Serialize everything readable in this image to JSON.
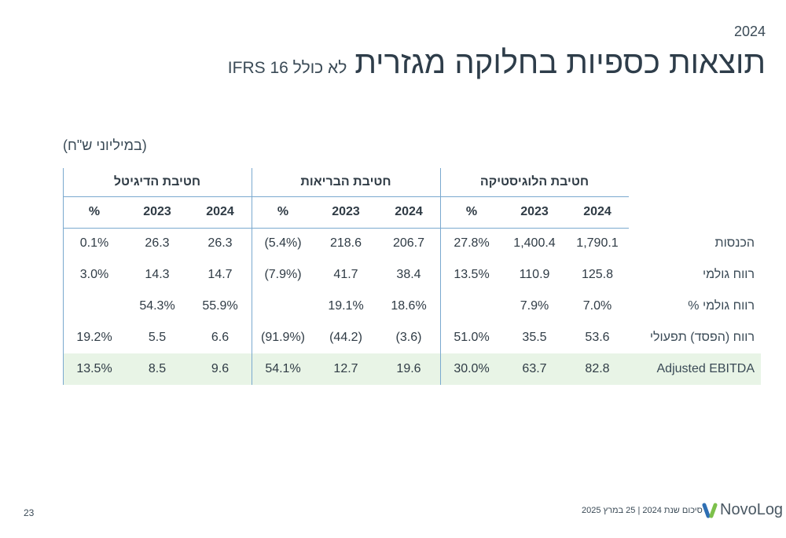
{
  "header": {
    "year": "2024",
    "title": "תוצאות כספיות בחלוקה מגזרית",
    "subtitle": "לא כולל IFRS 16",
    "units": "(במיליוני ש\"ח)"
  },
  "table": {
    "groups": [
      "חטיבת הדיגיטל",
      "חטיבת הבריאות",
      "חטיבת הלוגיסטיקה"
    ],
    "columns": [
      "%",
      "2023",
      "2024",
      "%",
      "2023",
      "2024",
      "%",
      "2023",
      "2024"
    ],
    "rows": [
      {
        "label": "הכנסות",
        "cells": [
          "0.1%",
          "26.3",
          "26.3",
          "(5.4%)",
          "218.6",
          "206.7",
          "27.8%",
          "1,400.4",
          "1,790.1"
        ]
      },
      {
        "label": "רווח גולמי",
        "cells": [
          "3.0%",
          "14.3",
          "14.7",
          "(7.9%)",
          "41.7",
          "38.4",
          "13.5%",
          "110.9",
          "125.8"
        ]
      },
      {
        "label": "רווח גולמי %",
        "cells": [
          "",
          "54.3%",
          "55.9%",
          "",
          "19.1%",
          "18.6%",
          "",
          "7.9%",
          "7.0%"
        ]
      },
      {
        "label": "רווח (הפסד) תפעולי",
        "cells": [
          "19.2%",
          "5.5",
          "6.6",
          "(91.9%)",
          "(44.2)",
          "(3.6)",
          "51.0%",
          "35.5",
          "53.6"
        ]
      },
      {
        "label": "Adjusted EBITDA",
        "cells": [
          "13.5%",
          "8.5",
          "9.6",
          "54.1%",
          "12.7",
          "19.6",
          "30.0%",
          "63.7",
          "82.8"
        ]
      }
    ]
  },
  "footer": {
    "page": "23",
    "text": "סיכום שנת 2024 | 25 במרץ 2025",
    "logo": "NovoLog",
    "logo_colors": [
      "#2f6fb3",
      "#7cc04b"
    ]
  }
}
